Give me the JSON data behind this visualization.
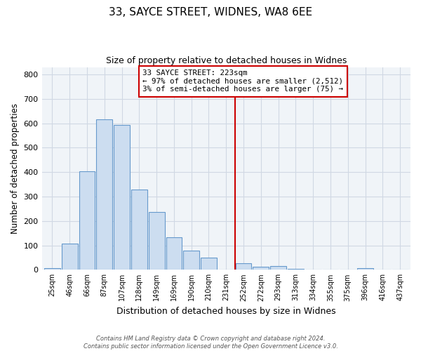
{
  "title": "33, SAYCE STREET, WIDNES, WA8 6EE",
  "subtitle": "Size of property relative to detached houses in Widnes",
  "xlabel": "Distribution of detached houses by size in Widnes",
  "ylabel": "Number of detached properties",
  "bar_labels": [
    "25sqm",
    "46sqm",
    "66sqm",
    "87sqm",
    "107sqm",
    "128sqm",
    "149sqm",
    "169sqm",
    "190sqm",
    "210sqm",
    "231sqm",
    "252sqm",
    "272sqm",
    "293sqm",
    "313sqm",
    "334sqm",
    "355sqm",
    "375sqm",
    "396sqm",
    "416sqm",
    "437sqm"
  ],
  "bar_values": [
    8,
    107,
    403,
    615,
    592,
    330,
    237,
    133,
    78,
    50,
    0,
    26,
    13,
    16,
    5,
    0,
    0,
    0,
    8,
    0,
    0
  ],
  "bar_color": "#ccddf0",
  "bar_edge_color": "#6699cc",
  "vline_x": 10.5,
  "vline_color": "#cc0000",
  "annotation_text": "33 SAYCE STREET: 223sqm\n← 97% of detached houses are smaller (2,512)\n3% of semi-detached houses are larger (75) →",
  "annotation_box_edge_color": "#cc0000",
  "ylim": [
    0,
    830
  ],
  "yticks": [
    0,
    100,
    200,
    300,
    400,
    500,
    600,
    700,
    800
  ],
  "footnote": "Contains HM Land Registry data © Crown copyright and database right 2024.\nContains public sector information licensed under the Open Government Licence v3.0.",
  "bg_color": "#ffffff",
  "plot_bg_color": "#f0f4f8",
  "grid_color": "#d0d8e4"
}
